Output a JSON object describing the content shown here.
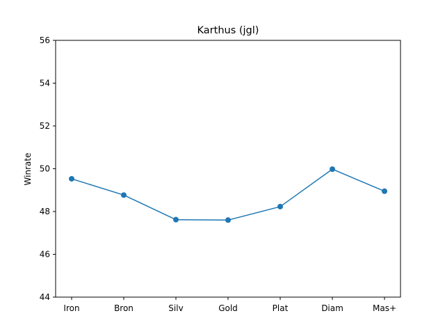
{
  "chart_data": {
    "type": "line",
    "title": "Karthus (jgl)",
    "xlabel": "",
    "ylabel": "Winrate",
    "categories": [
      "Iron",
      "Bron",
      "Silv",
      "Gold",
      "Plat",
      "Diam",
      "Mas+"
    ],
    "series": [
      {
        "values": [
          49.53,
          48.77,
          47.62,
          47.6,
          48.23,
          49.98,
          48.95
        ],
        "color": "#1f77b4"
      }
    ],
    "ylim": [
      44,
      56
    ],
    "yticks": [
      44,
      46,
      48,
      50,
      52,
      54,
      56
    ],
    "grid": false,
    "legend": "none"
  }
}
